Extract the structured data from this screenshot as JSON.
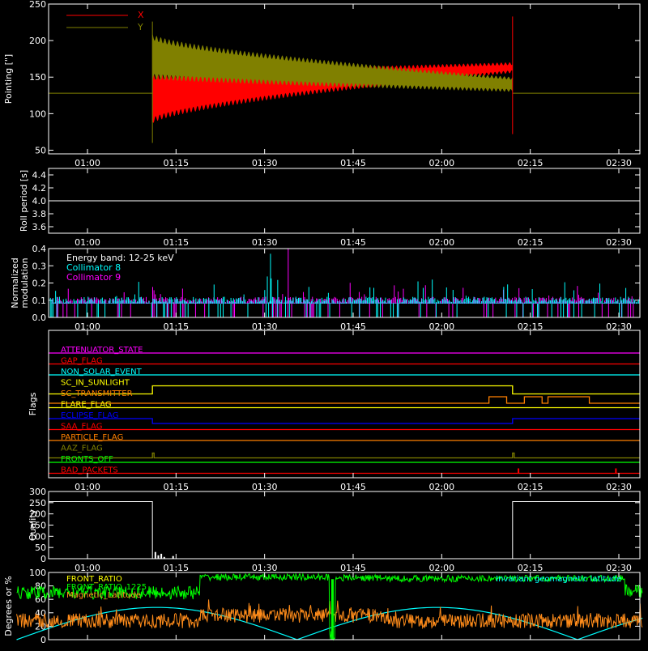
{
  "time_ticks": [
    "01:00",
    "01:15",
    "01:30",
    "01:45",
    "02:00",
    "02:15",
    "02:30"
  ],
  "chart_data": [
    {
      "type": "line",
      "ylabel": "Pointing [\"]",
      "ylim": [
        45,
        250
      ],
      "yticks": [
        "250",
        "200",
        "150",
        "100",
        "50"
      ],
      "ytick_values": [
        250,
        200,
        150,
        100,
        50
      ],
      "legend": [
        "X",
        "Y"
      ],
      "series": [
        {
          "name": "X",
          "color": "#ff0000",
          "center_start": 120,
          "center_end": 163,
          "amp_start": 55,
          "amp_end": 10
        },
        {
          "name": "Y",
          "color": "#808000",
          "center_start": 178,
          "center_end": 140,
          "amp_start": 50,
          "amp_end": 15
        }
      ],
      "baseline": 128,
      "active_start": "01:11",
      "active_end": "02:12"
    },
    {
      "type": "line",
      "ylabel": "Roll period [s]",
      "ylim": [
        3.5,
        4.5
      ],
      "yticks": [
        "4.4",
        "4.2",
        "4.0",
        "3.8",
        "3.6"
      ],
      "ytick_values": [
        4.4,
        4.2,
        4.0,
        3.8,
        3.6
      ],
      "series": [
        {
          "name": "",
          "color": "#ffffff",
          "value": 4.0
        }
      ]
    },
    {
      "type": "bar",
      "ylabel": "Normalized modulation",
      "ylim": [
        0,
        0.4
      ],
      "yticks": [
        "0.4",
        "0.3",
        "0.2",
        "0.1",
        "0.0"
      ],
      "ytick_values": [
        0.4,
        0.3,
        0.2,
        0.1,
        0.0
      ],
      "legend": [
        "Energy band: 12-25 keV",
        "Collimator 8",
        "Collimator 9"
      ],
      "series": [
        {
          "name": "Collimator 8",
          "color": "#00ffff",
          "typical": 0.1,
          "peak": 0.37,
          "peak_time": "01:31"
        },
        {
          "name": "Collimator 9",
          "color": "#ff00ff",
          "typical": 0.1,
          "peak": 0.4,
          "peak_time": "01:34"
        }
      ]
    },
    {
      "type": "line",
      "ylabel": "Flags",
      "flags": [
        {
          "label": "ATTENUATOR_STATE",
          "color": "#ff00ff"
        },
        {
          "label": "GAP_FLAG",
          "color": "#ff0000"
        },
        {
          "label": "NON_SOLAR_EVENT",
          "color": "#00ffff"
        },
        {
          "label": "SC_IN_SUNLIGHT",
          "color": "#ffff00"
        },
        {
          "label": "SC_TRANSMITTER",
          "color": "#ff8000"
        },
        {
          "label": "FLARE_FLAG",
          "color": "#ffff00"
        },
        {
          "label": "ECLIPSE_FLAG",
          "color": "#0000ff"
        },
        {
          "label": "SAA_FLAG",
          "color": "#ff0000"
        },
        {
          "label": "PARTICLE_FLAG",
          "color": "#ff8000"
        },
        {
          "label": "AAZ_FLAG",
          "color": "#808000"
        },
        {
          "label": "FRONTS_OFF",
          "color": "#00ff00"
        },
        {
          "label": "BAD_PACKETS",
          "color": "#ff0000"
        }
      ]
    },
    {
      "type": "line",
      "ylabel": "Quality",
      "ylim": [
        0,
        300
      ],
      "yticks": [
        "300",
        "250",
        "200",
        "150",
        "100",
        "50",
        "0"
      ],
      "ytick_values": [
        300,
        250,
        200,
        150,
        100,
        50,
        0
      ],
      "series": [
        {
          "name": "",
          "color": "#ffffff",
          "high_value": 255
        }
      ]
    },
    {
      "type": "line",
      "ylabel": "Degrees or %",
      "ylim": [
        0,
        100
      ],
      "yticks": [
        "100",
        "80",
        "60",
        "40",
        "20",
        "0"
      ],
      "ytick_values": [
        100,
        80,
        60,
        40,
        20,
        0
      ],
      "legend": [
        "FRONT_RATIO",
        "FRONT_RATIO_1225",
        "Magnetic_Latitude",
        "Invariant geomagnetic latitude"
      ],
      "series": [
        {
          "name": "FRONT_RATIO",
          "color": "#ffff00"
        },
        {
          "name": "FRONT_RATIO_1225",
          "color": "#00ff00"
        },
        {
          "name": "Magnetic_Latitude",
          "color": "#ff8c1a"
        },
        {
          "name": "Invariant geomagnetic latitude",
          "color": "#00ffff"
        }
      ]
    }
  ]
}
